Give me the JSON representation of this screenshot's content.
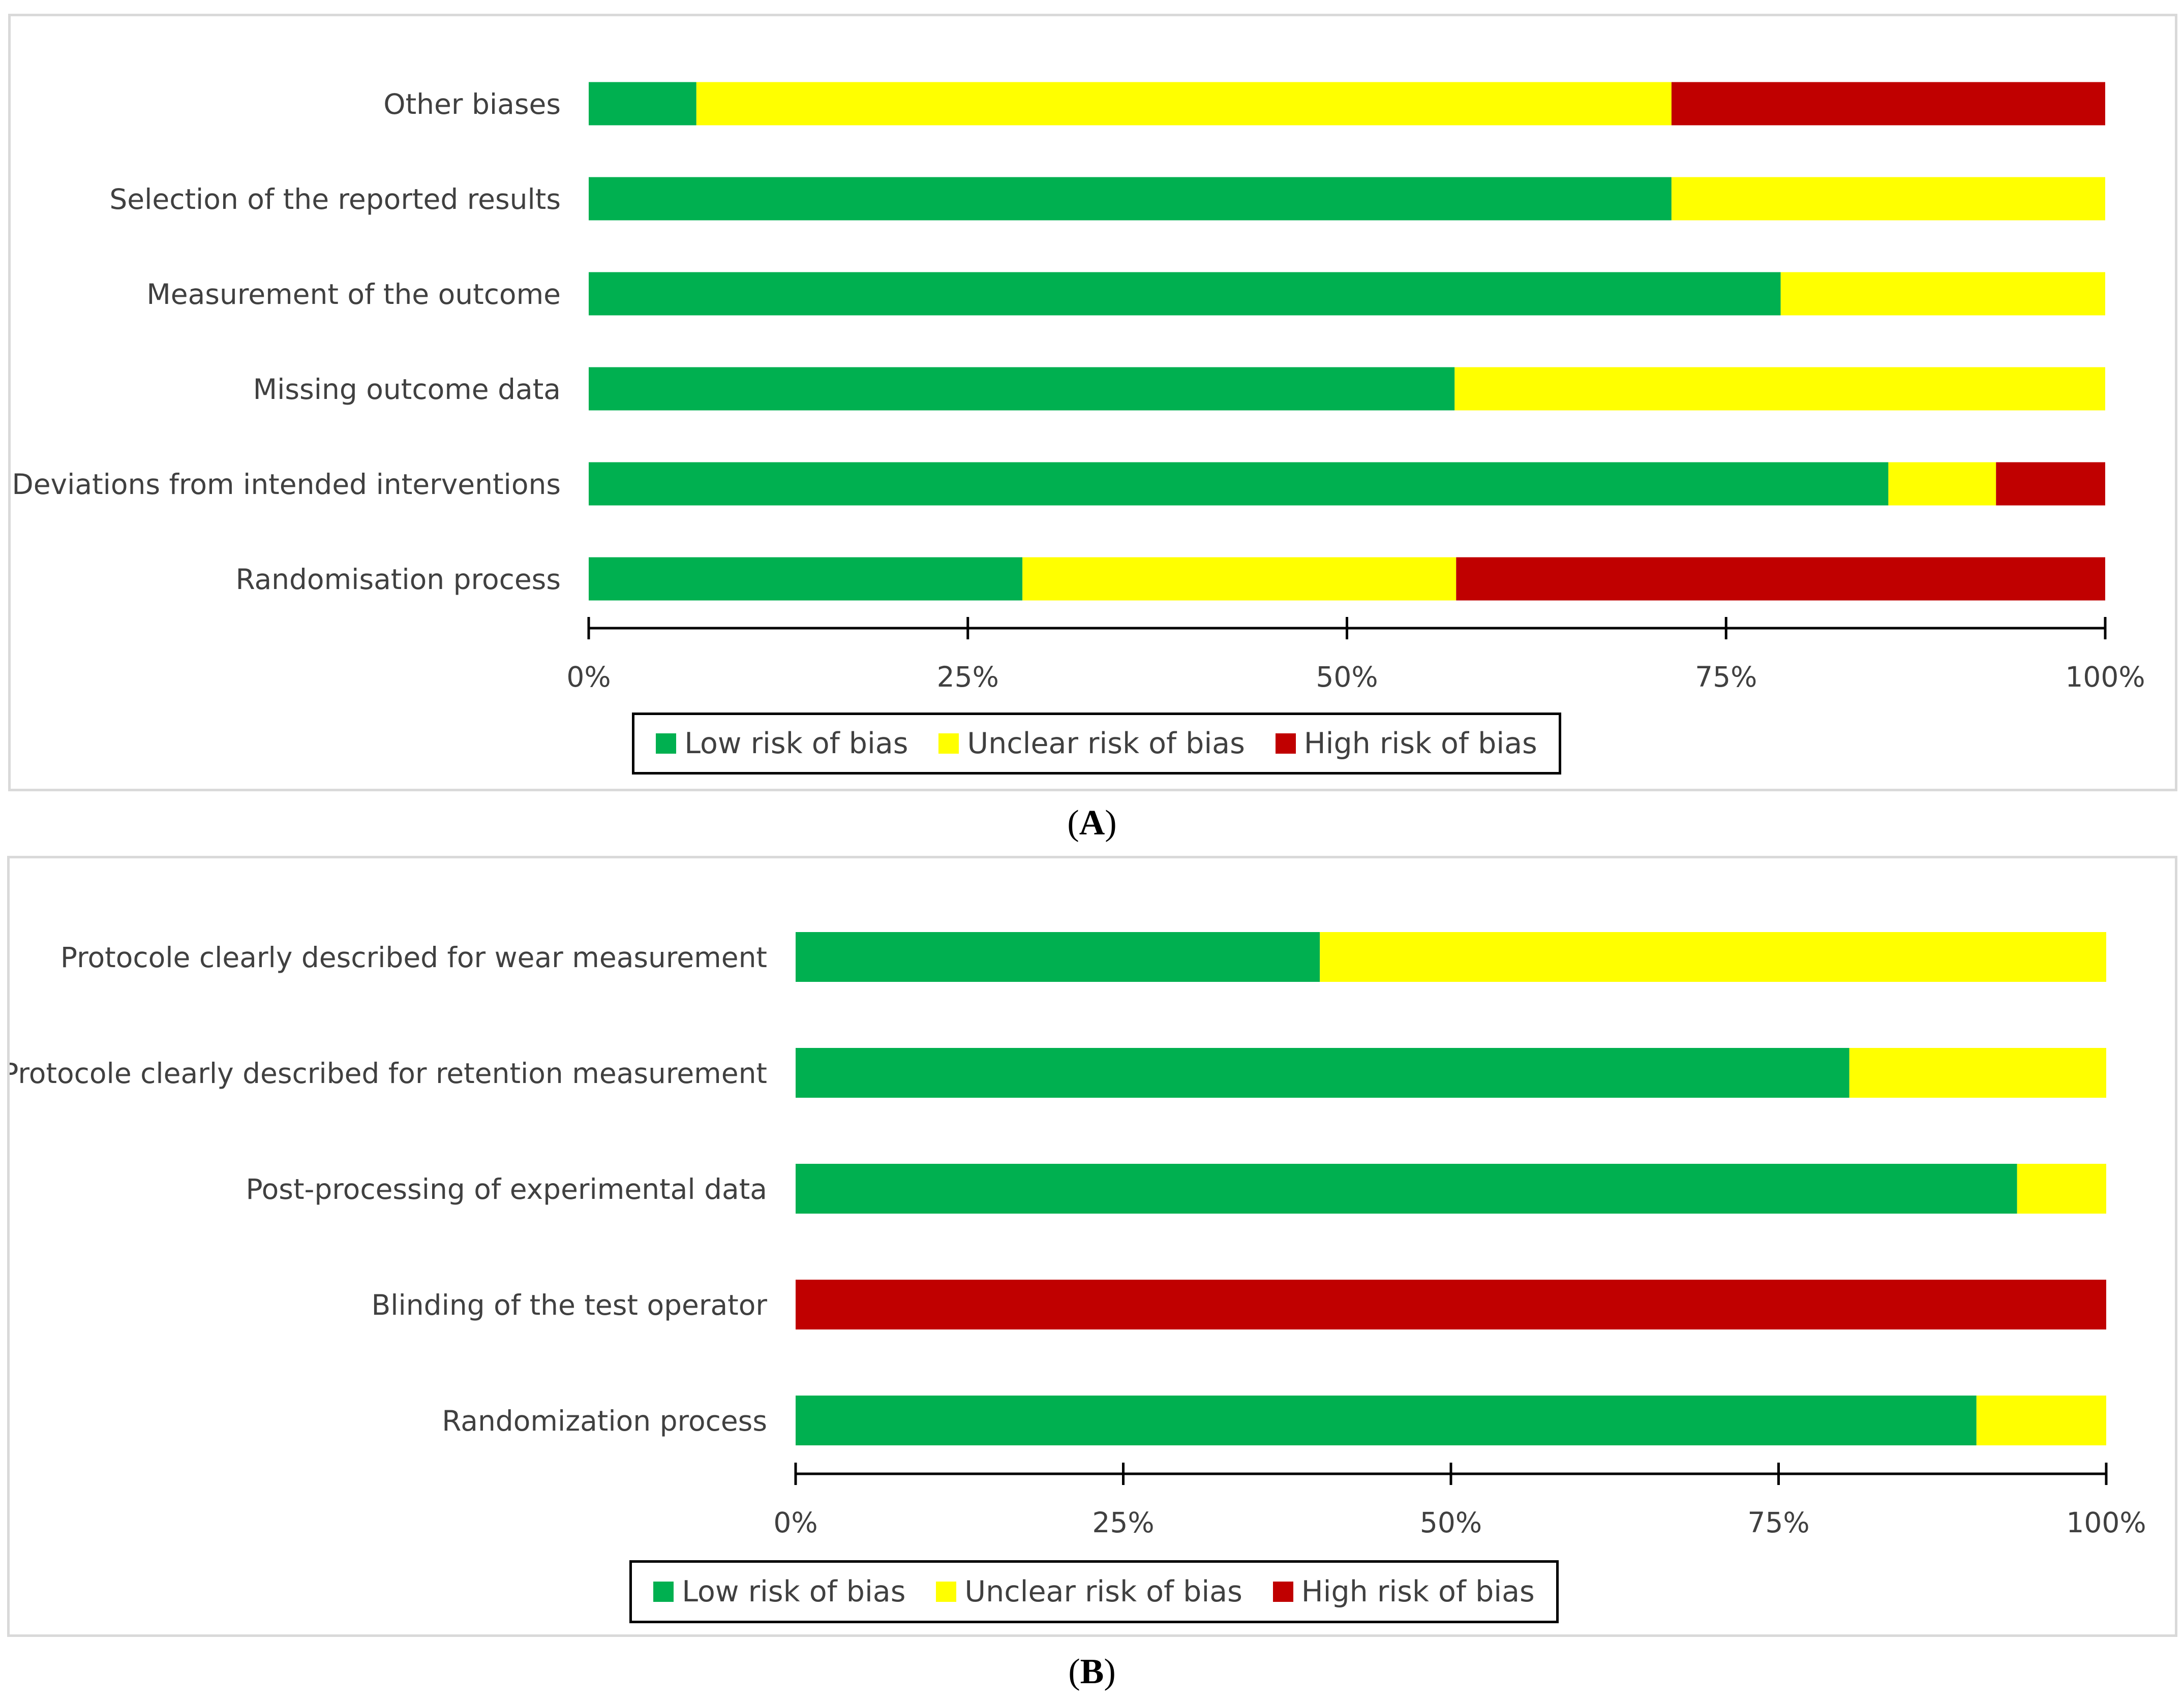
{
  "colors": {
    "low": "#00b050",
    "unclear": "#ffff00",
    "high": "#c00000",
    "axis": "#000000"
  },
  "chart_data": [
    {
      "type": "bar",
      "orientation": "horizontal",
      "stacked": true,
      "caption": "(A)",
      "caption_letter": "A",
      "categories": [
        "Other biases",
        "Selection of the reported results",
        "Measurement of the outcome",
        "Missing outcome data",
        "Deviations from intended interventions",
        "Randomisation process"
      ],
      "series": [
        {
          "name": "Low risk of bias",
          "key": "low",
          "values": [
            7.1,
            71.4,
            78.6,
            57.1,
            85.7,
            28.6
          ]
        },
        {
          "name": "Unclear risk of bias",
          "key": "unclear",
          "values": [
            64.3,
            28.6,
            21.4,
            42.9,
            7.1,
            28.6
          ]
        },
        {
          "name": "High risk of bias",
          "key": "high",
          "values": [
            28.6,
            0,
            0,
            0,
            7.2,
            42.8
          ]
        }
      ],
      "xlim": [
        0,
        100
      ],
      "xticks": [
        "0%",
        "25%",
        "50%",
        "75%",
        "100%"
      ],
      "legend": [
        "Low risk of bias",
        "Unclear risk of bias",
        "High risk of bias"
      ],
      "legend_position": "bottom"
    },
    {
      "type": "bar",
      "orientation": "horizontal",
      "stacked": true,
      "caption": "(B)",
      "caption_letter": "B",
      "categories": [
        "Protocole clearly described for wear measurement",
        "Protocole clearly described for retention measurement",
        "Post-processing of experimental data",
        "Blinding of the test operator",
        "Randomization process"
      ],
      "series": [
        {
          "name": "Low risk of bias",
          "key": "low",
          "values": [
            40,
            80.4,
            93.2,
            0,
            90.1
          ]
        },
        {
          "name": "Unclear risk of bias",
          "key": "unclear",
          "values": [
            60,
            19.6,
            6.8,
            0,
            9.9
          ]
        },
        {
          "name": "High risk of bias",
          "key": "high",
          "values": [
            0,
            0,
            0,
            100,
            0
          ]
        }
      ],
      "xlim": [
        0,
        100
      ],
      "xticks": [
        "0%",
        "25%",
        "50%",
        "75%",
        "100%"
      ],
      "legend": [
        "Low risk of bias",
        "Unclear risk of bias",
        "High risk of bias"
      ],
      "legend_position": "bottom"
    }
  ]
}
